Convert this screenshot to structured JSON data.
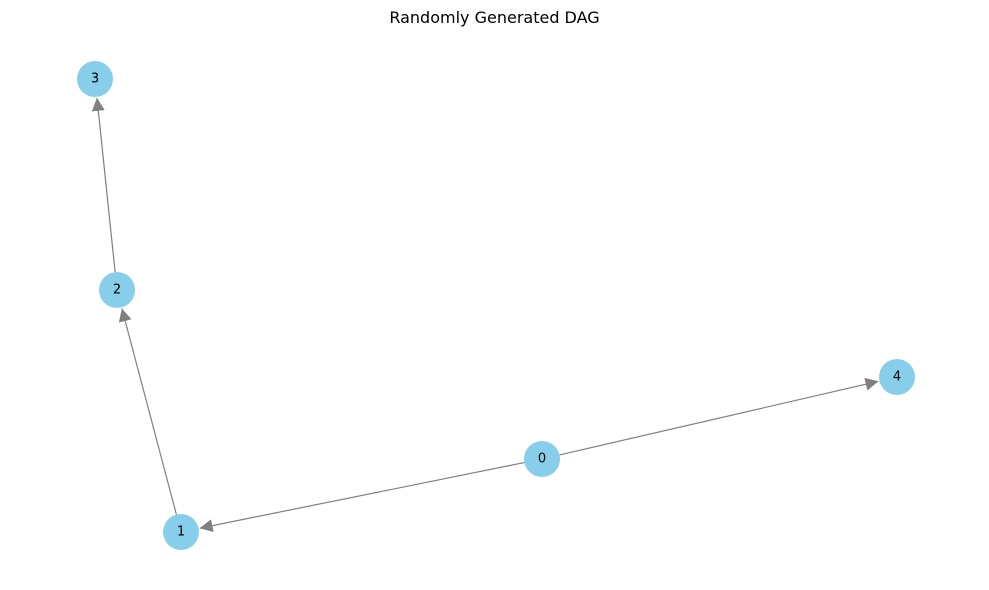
{
  "title": "Randomly Generated DAG",
  "style": {
    "node_color": "#87ceeb",
    "edge_color": "#808080",
    "label_color": "#000000",
    "background": "#ffffff"
  },
  "graph": {
    "type": "directed-acyclic-graph",
    "nodes": [
      {
        "id": "0",
        "label": "0"
      },
      {
        "id": "1",
        "label": "1"
      },
      {
        "id": "2",
        "label": "2"
      },
      {
        "id": "3",
        "label": "3"
      },
      {
        "id": "4",
        "label": "4"
      }
    ],
    "edges": [
      {
        "source": "0",
        "target": "1"
      },
      {
        "source": "0",
        "target": "4"
      },
      {
        "source": "1",
        "target": "2"
      },
      {
        "source": "2",
        "target": "3"
      }
    ]
  }
}
